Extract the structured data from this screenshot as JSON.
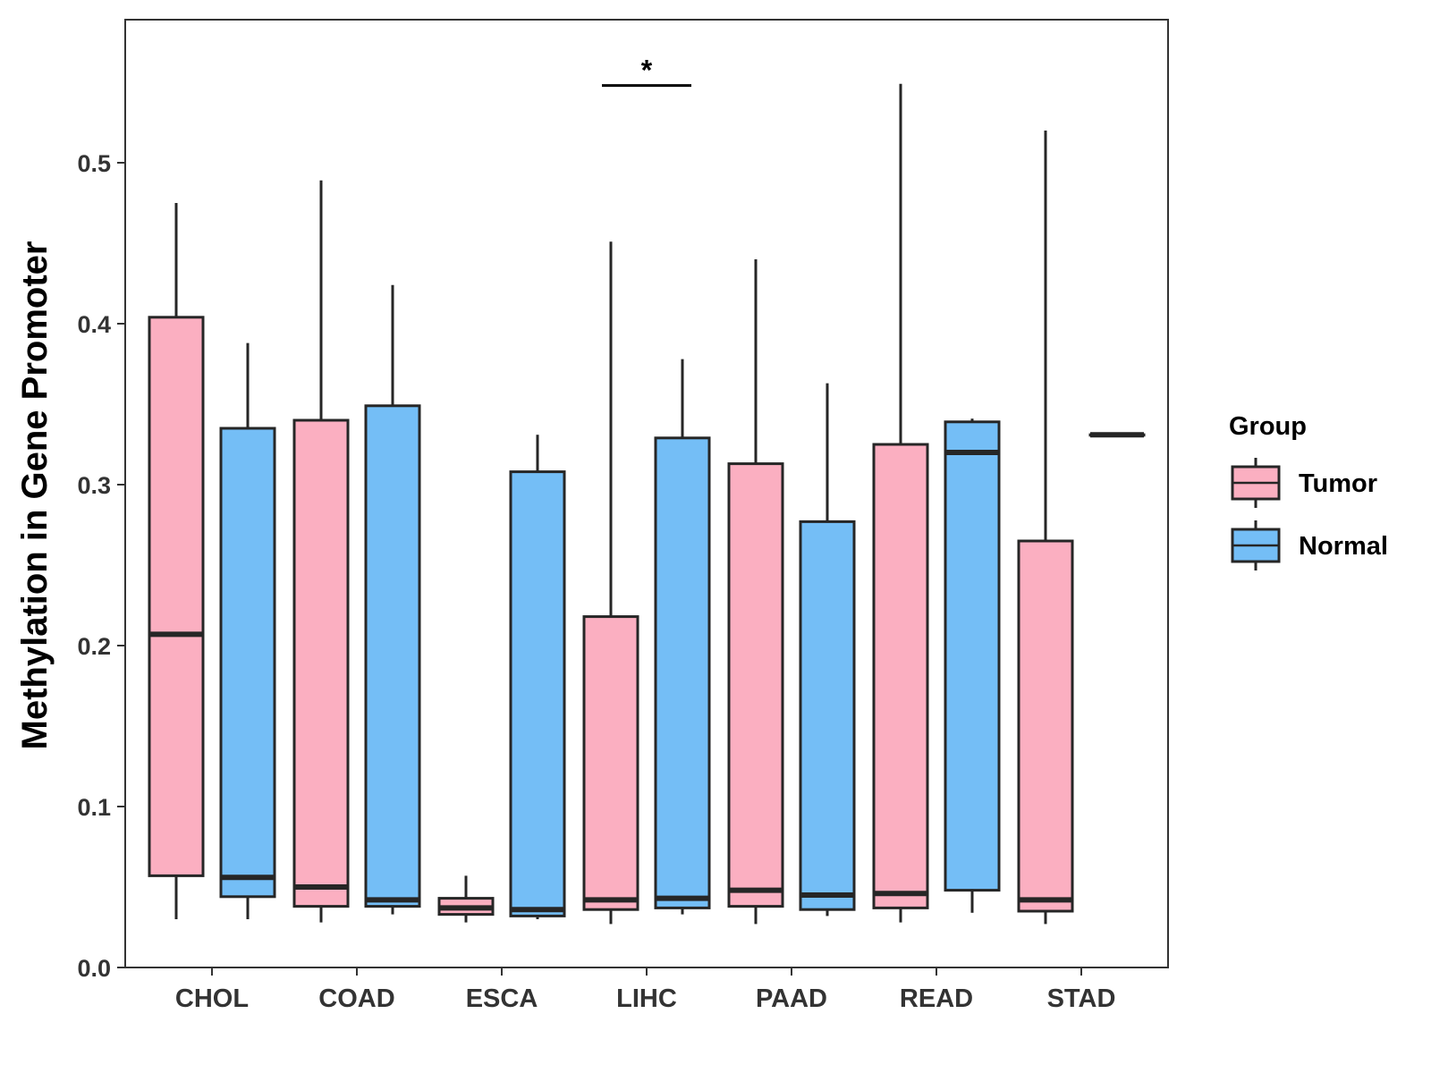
{
  "chart_data": {
    "type": "boxplot",
    "title": "",
    "xlabel": "",
    "ylabel": "Methylation in Gene Promoter",
    "ylim": [
      0,
      0.575
    ],
    "yticks": [
      0.0,
      0.1,
      0.2,
      0.3,
      0.4,
      0.5
    ],
    "ytick_labels": [
      "0.0",
      "0.1",
      "0.2",
      "0.3",
      "0.4",
      "0.5"
    ],
    "categories": [
      "CHOL",
      "COAD",
      "ESCA",
      "LIHC",
      "PAAD",
      "READ",
      "STAD"
    ],
    "legend": {
      "title": "Group",
      "placement": "right",
      "entries": [
        {
          "name": "Tumor",
          "color": "#FBAFC1"
        },
        {
          "name": "Normal",
          "color": "#74BEF6"
        }
      ]
    },
    "series": [
      {
        "name": "Tumor",
        "color": "#FBAFC1",
        "boxes": [
          {
            "category": "CHOL",
            "min": 0.03,
            "q1": 0.057,
            "median": 0.207,
            "q3": 0.404,
            "max": 0.475
          },
          {
            "category": "COAD",
            "min": 0.028,
            "q1": 0.038,
            "median": 0.05,
            "q3": 0.34,
            "max": 0.489
          },
          {
            "category": "ESCA",
            "min": 0.028,
            "q1": 0.033,
            "median": 0.037,
            "q3": 0.043,
            "max": 0.057
          },
          {
            "category": "LIHC",
            "min": 0.027,
            "q1": 0.036,
            "median": 0.042,
            "q3": 0.218,
            "max": 0.451
          },
          {
            "category": "PAAD",
            "min": 0.027,
            "q1": 0.038,
            "median": 0.048,
            "q3": 0.313,
            "max": 0.44
          },
          {
            "category": "READ",
            "min": 0.028,
            "q1": 0.037,
            "median": 0.046,
            "q3": 0.325,
            "max": 0.549
          },
          {
            "category": "STAD",
            "min": 0.027,
            "q1": 0.035,
            "median": 0.042,
            "q3": 0.265,
            "max": 0.52
          }
        ]
      },
      {
        "name": "Normal",
        "color": "#74BEF6",
        "boxes": [
          {
            "category": "CHOL",
            "min": 0.03,
            "q1": 0.044,
            "median": 0.056,
            "q3": 0.335,
            "max": 0.388
          },
          {
            "category": "COAD",
            "min": 0.033,
            "q1": 0.038,
            "median": 0.042,
            "q3": 0.349,
            "max": 0.424
          },
          {
            "category": "ESCA",
            "min": 0.03,
            "q1": 0.032,
            "median": 0.036,
            "q3": 0.308,
            "max": 0.331
          },
          {
            "category": "LIHC",
            "min": 0.033,
            "q1": 0.037,
            "median": 0.043,
            "q3": 0.329,
            "max": 0.378
          },
          {
            "category": "PAAD",
            "min": 0.032,
            "q1": 0.036,
            "median": 0.045,
            "q3": 0.277,
            "max": 0.363
          },
          {
            "category": "READ",
            "min": 0.034,
            "q1": 0.048,
            "median": 0.32,
            "q3": 0.339,
            "max": 0.341
          },
          {
            "category": "STAD",
            "min": 0.331,
            "q1": 0.331,
            "median": 0.331,
            "q3": 0.331,
            "max": 0.331
          }
        ]
      }
    ],
    "annotations": [
      {
        "category": "LIHC",
        "text": "*",
        "y": 0.548
      }
    ]
  }
}
